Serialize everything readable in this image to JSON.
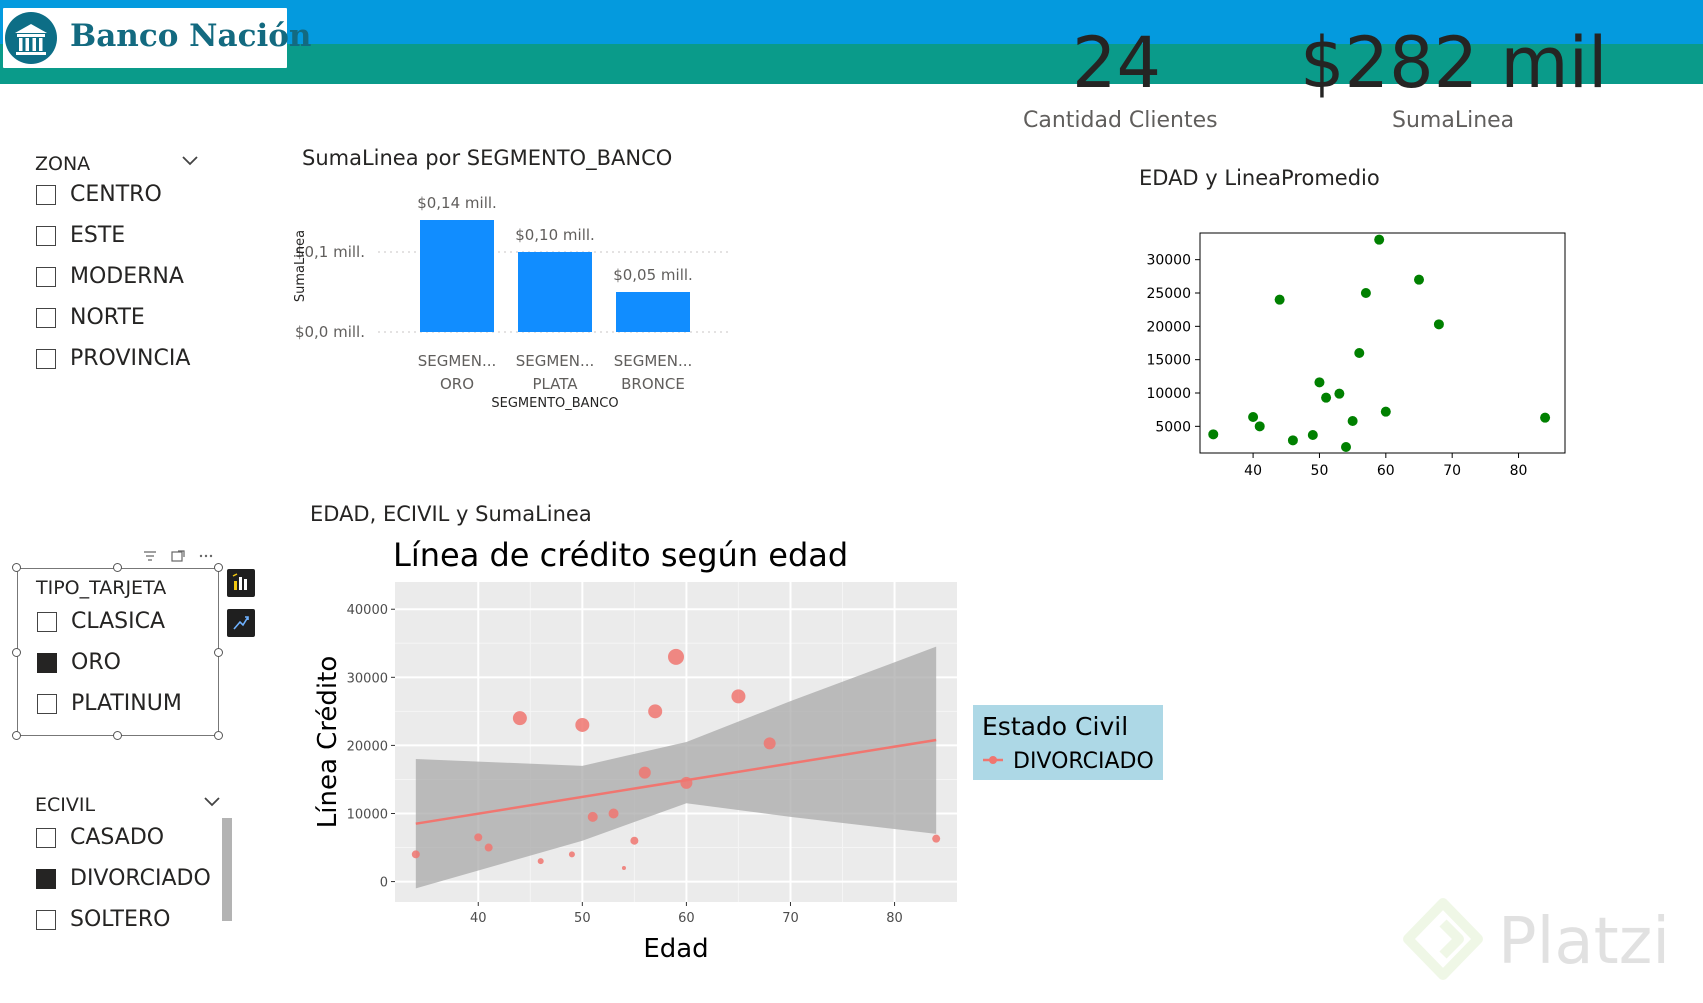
{
  "header": {
    "brand_name": "Banco Nación",
    "colors": {
      "top_band": "#049ade",
      "bottom_band": "#0a9b8a",
      "brand_text": "#136a80"
    }
  },
  "kpis": [
    {
      "value": "24",
      "label": "Cantidad Clientes"
    },
    {
      "value": "$282 mil",
      "label": "SumaLinea"
    }
  ],
  "slicers": {
    "zona": {
      "title": "ZONA",
      "options": [
        {
          "label": "CENTRO",
          "checked": false
        },
        {
          "label": "ESTE",
          "checked": false
        },
        {
          "label": "MODERNA",
          "checked": false
        },
        {
          "label": "NORTE",
          "checked": false
        },
        {
          "label": "PROVINCIA",
          "checked": false
        }
      ]
    },
    "tipo_tarjeta": {
      "title": "TIPO_TARJETA",
      "options": [
        {
          "label": "CLASICA",
          "checked": false
        },
        {
          "label": "ORO",
          "checked": true
        },
        {
          "label": "PLATINUM",
          "checked": false
        }
      ]
    },
    "ecivil": {
      "title": "ECIVIL",
      "options": [
        {
          "label": "CASADO",
          "checked": false
        },
        {
          "label": "DIVORCIADO",
          "checked": true
        },
        {
          "label": "SOLTERO",
          "checked": false
        }
      ]
    }
  },
  "visual_headers": {
    "bar": "SumaLinea por SEGMENTO_BANCO",
    "scatter": "EDAD y LineaPromedio",
    "ggplot": "EDAD, ECIVIL y SumaLinea"
  },
  "icons": [
    "bank-logo-icon",
    "chevron-down-icon",
    "filter-icon",
    "focus-mode-icon",
    "more-options-icon",
    "chart-format-icon",
    "analytics-icon"
  ],
  "watermark": "Platzi",
  "chart_data": [
    {
      "type": "bar",
      "title": "",
      "categories": [
        "SEGMEN...\nORO",
        "SEGMEN...\nPLATA",
        "SEGMEN...\nBRONCE"
      ],
      "category_lines": [
        [
          "SEGMEN...",
          "ORO"
        ],
        [
          "SEGMEN...",
          "PLATA"
        ],
        [
          "SEGMEN...",
          "BRONCE"
        ]
      ],
      "values": [
        0.14,
        0.1,
        0.05
      ],
      "data_labels": [
        "$0,14 mill.",
        "$0,10 mill.",
        "$0,05 mill."
      ],
      "xlabel": "SEGMENTO_BANCO",
      "ylabel": "SumaLinea",
      "yticks": [
        0,
        0.1
      ],
      "ytick_labels": [
        "$0,0 mill.",
        "$0,1 mill."
      ],
      "ylim": [
        0,
        0.14
      ],
      "color": "#118dff",
      "grid": true
    },
    {
      "type": "scatter",
      "title": "",
      "x": [
        34,
        40,
        41,
        44,
        46,
        49,
        50,
        51,
        53,
        54,
        55,
        56,
        57,
        59,
        60,
        65,
        68,
        84
      ],
      "y": [
        3800,
        6400,
        5000,
        24000,
        2900,
        3700,
        11600,
        9300,
        9900,
        1900,
        5800,
        16000,
        25000,
        33000,
        7200,
        27000,
        20300,
        6300
      ],
      "xticks": [
        40,
        50,
        60,
        70,
        80
      ],
      "yticks": [
        5000,
        10000,
        15000,
        20000,
        25000,
        30000
      ],
      "xlim": [
        32,
        87
      ],
      "ylim": [
        1000,
        34000
      ],
      "color": "#008000",
      "grid": false
    },
    {
      "type": "scatter",
      "title": "Línea de crédito según edad",
      "xlabel": "Edad",
      "ylabel": "Línea Crédito",
      "x": [
        34,
        40,
        41,
        44,
        46,
        49,
        50,
        51,
        53,
        54,
        55,
        56,
        57,
        59,
        60,
        65,
        68,
        84
      ],
      "y": [
        4000,
        6500,
        5000,
        24000,
        3000,
        4000,
        23000,
        9500,
        10000,
        2000,
        6000,
        16000,
        25000,
        33000,
        14500,
        27200,
        20300,
        6300
      ],
      "sizes": [
        4,
        4,
        4,
        7,
        3,
        3,
        7,
        5,
        5,
        2,
        4,
        6,
        7,
        8,
        6,
        7,
        6,
        4
      ],
      "trend": {
        "x": [
          34,
          84
        ],
        "y": [
          8500,
          20800
        ]
      },
      "band_upper": [
        [
          34,
          18000
        ],
        [
          50,
          17000
        ],
        [
          60,
          20500
        ],
        [
          70,
          26500
        ],
        [
          84,
          34500
        ]
      ],
      "band_lower": [
        [
          34,
          -1000
        ],
        [
          50,
          6000
        ],
        [
          60,
          11500
        ],
        [
          70,
          9500
        ],
        [
          84,
          7000
        ]
      ],
      "xticks": [
        40,
        50,
        60,
        70,
        80
      ],
      "yticks": [
        0,
        10000,
        20000,
        30000,
        40000
      ],
      "xlim": [
        32,
        86
      ],
      "ylim": [
        -3000,
        44000
      ],
      "legend": {
        "title": "Estado Civil",
        "entries": [
          "DIVORCIADO"
        ],
        "placement": "right"
      },
      "colors": {
        "points": "#f07670",
        "line": "#f07670",
        "band": "#a9a9a9",
        "panel": "#ebebeb",
        "legend_bg": "#add8e6"
      },
      "grid": true
    }
  ]
}
